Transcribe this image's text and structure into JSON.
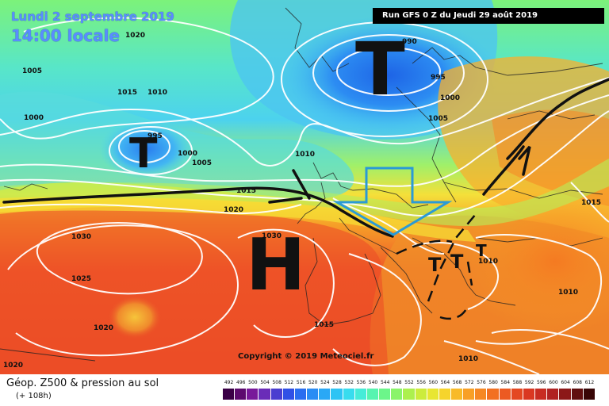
{
  "map": {
    "date_line": "Lundi 2 septembre 2019",
    "time_line": "14:00 locale",
    "run_info": "Run GFS 0 Z du Jeudi 29 août 2019",
    "copyright": "Copyright © 2019 Meteociel.fr",
    "pressure_centers": [
      {
        "letter": "T",
        "kind": "low"
      },
      {
        "letter": "T",
        "kind": "low"
      },
      {
        "letter": "H",
        "kind": "high"
      },
      {
        "letter": "T",
        "kind": "low"
      },
      {
        "letter": "T",
        "kind": "low"
      },
      {
        "letter": "T",
        "kind": "low"
      }
    ],
    "isobar_labels": [
      "1020",
      "1005",
      "1015",
      "1010",
      "1000",
      "995",
      "1000",
      "1005",
      "990",
      "995",
      "1000",
      "1005",
      "1010",
      "1015",
      "1020",
      "1030",
      "1025",
      "1020",
      "1030",
      "1015",
      "1010",
      "1010",
      "1010",
      "1015",
      "1020"
    ]
  },
  "legend": {
    "title": "Géop. Z500 & pression au sol",
    "subtitle": "(+ 108h)",
    "scale_values": [
      "492",
      "496",
      "500",
      "504",
      "508",
      "512",
      "516",
      "520",
      "524",
      "528",
      "532",
      "536",
      "540",
      "544",
      "548",
      "552",
      "556",
      "560",
      "564",
      "568",
      "572",
      "576",
      "580",
      "584",
      "588",
      "592",
      "596",
      "600",
      "604",
      "608",
      "612"
    ],
    "scale_colors": [
      "#3a0046",
      "#5c0a6e",
      "#78189a",
      "#6a2cb8",
      "#4a3ed0",
      "#3050e6",
      "#2a6ef0",
      "#2a8cf4",
      "#2aa8f6",
      "#2ec4f4",
      "#38dcee",
      "#46ecd8",
      "#56f4b0",
      "#6cf68a",
      "#8af46a",
      "#acf04e",
      "#ccec3c",
      "#e8e632",
      "#f6d42c",
      "#f8ba28",
      "#f8a026",
      "#f68824",
      "#f27022",
      "#ec5a22",
      "#e44822",
      "#da3822",
      "#c82c22",
      "#b02222",
      "#8c1818",
      "#600e0e",
      "#380606"
    ]
  }
}
